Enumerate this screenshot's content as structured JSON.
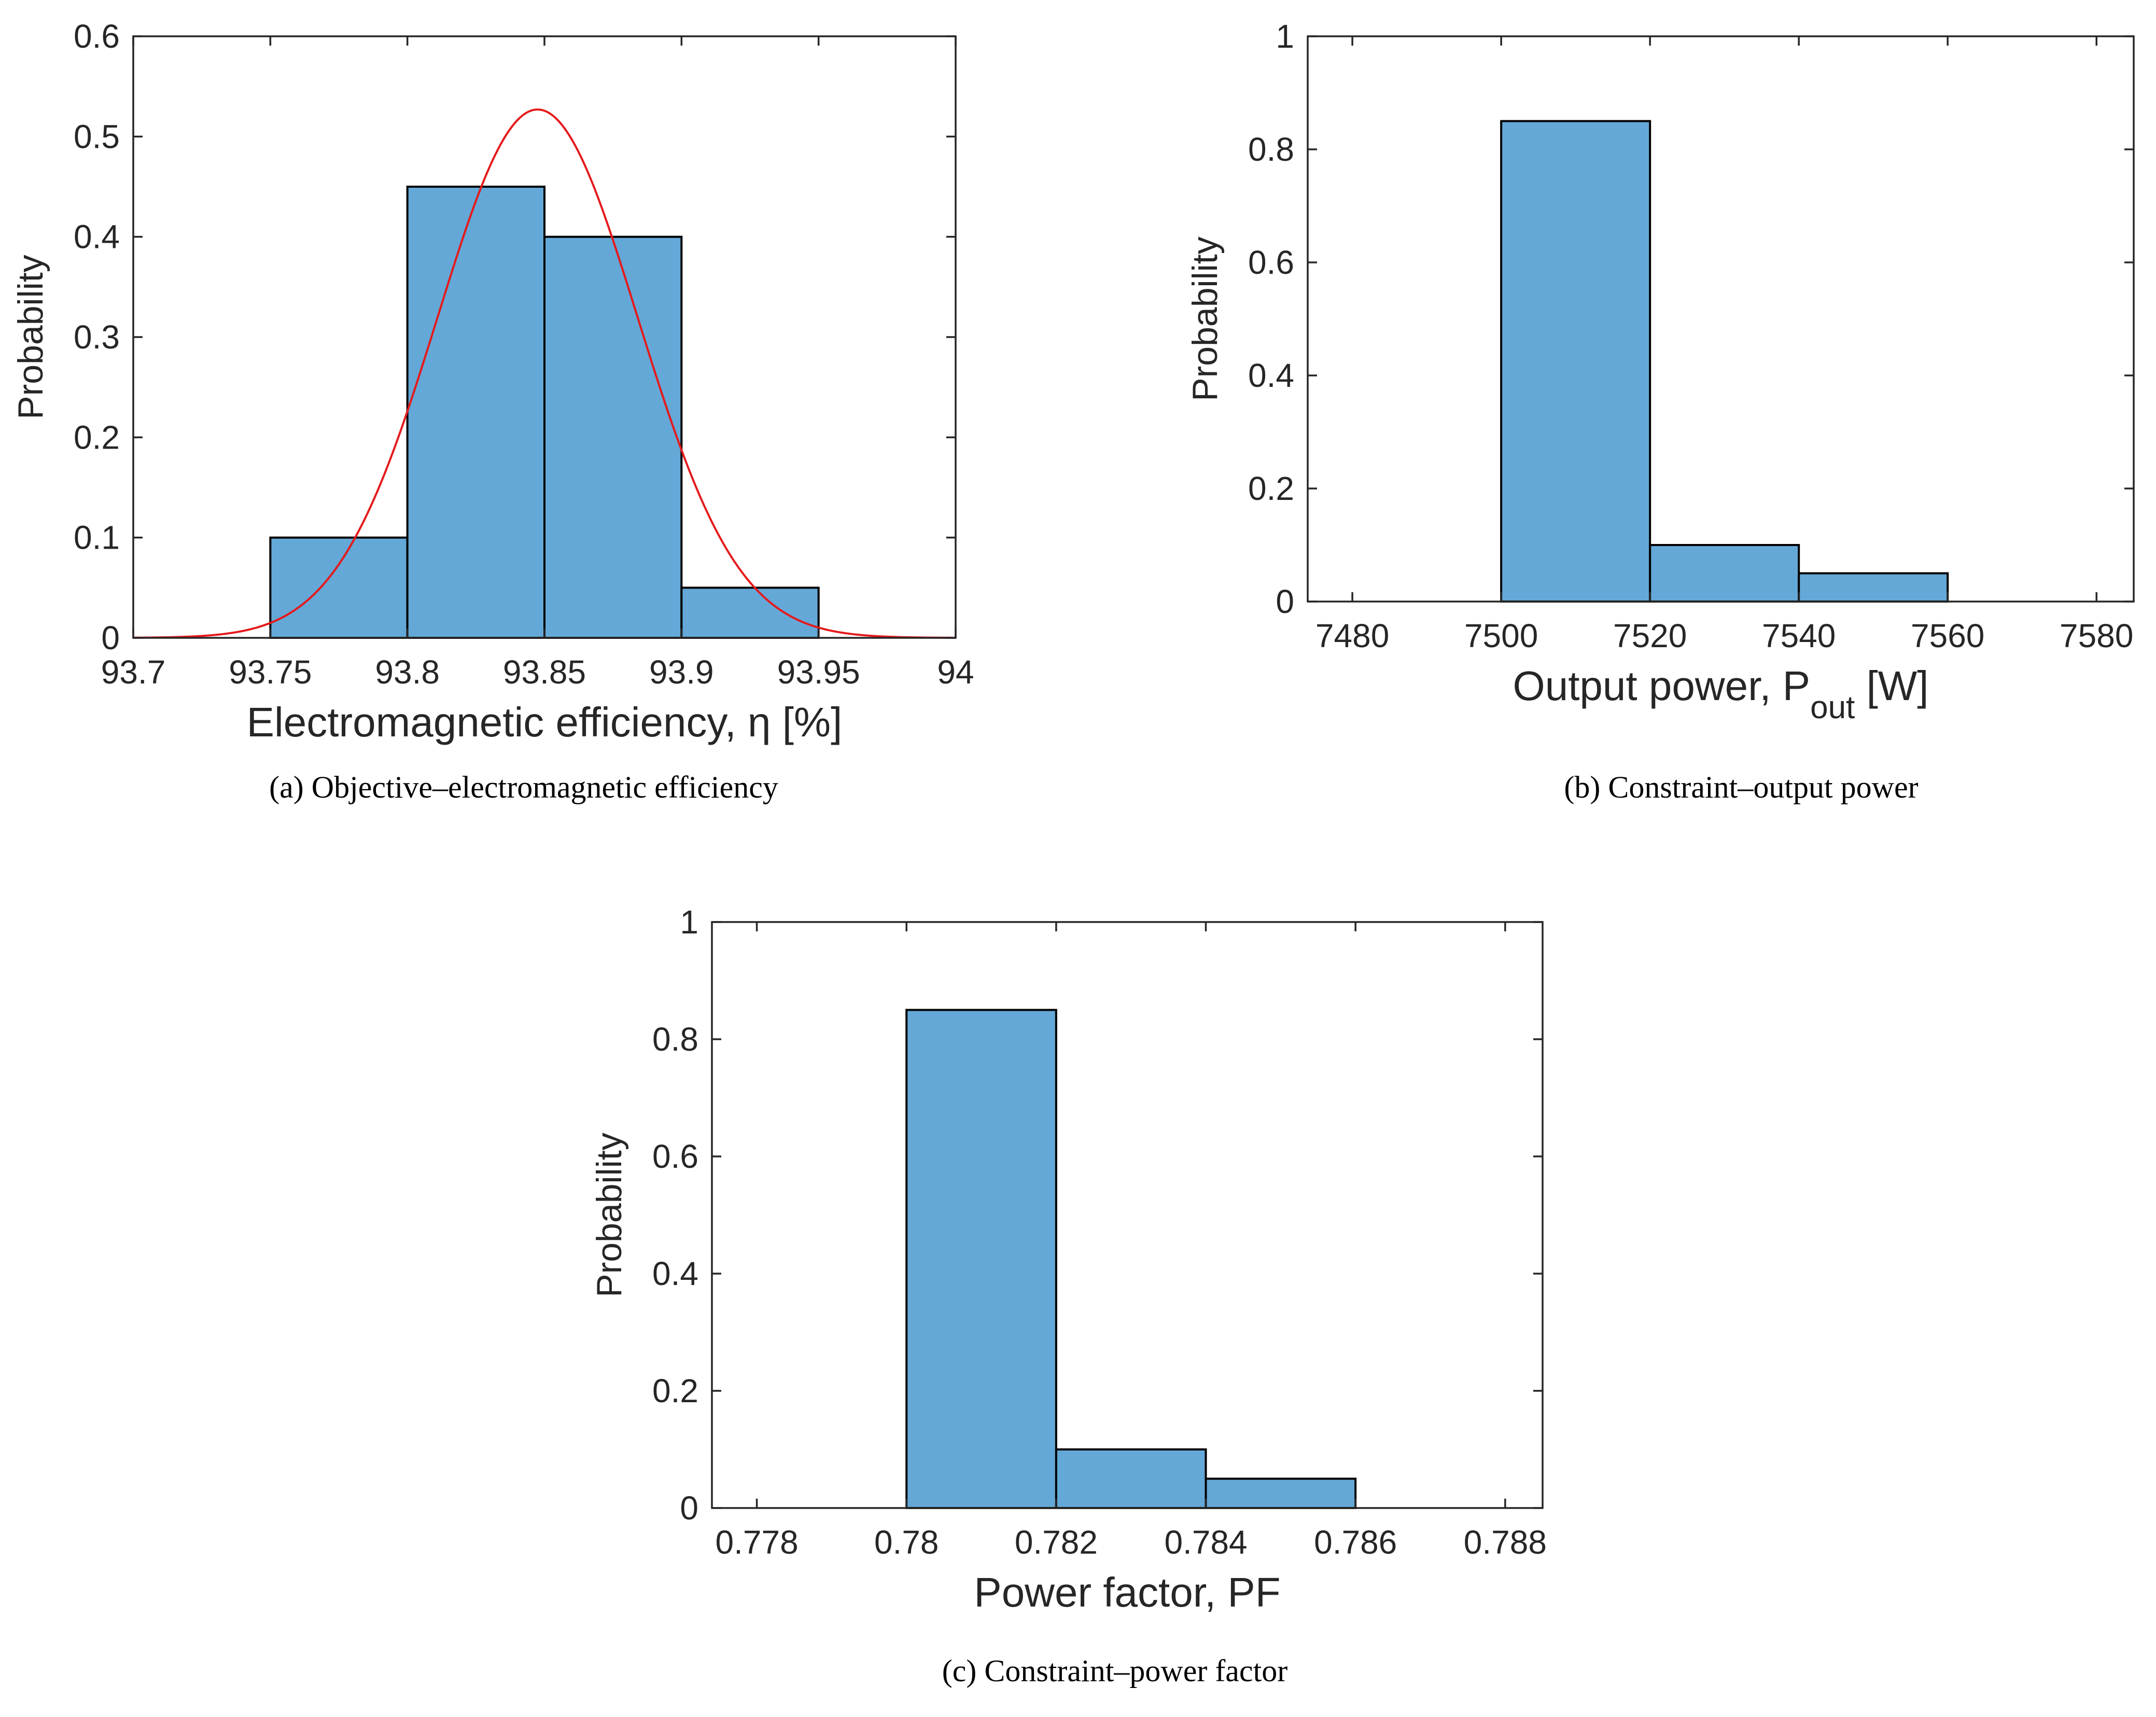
{
  "figure": {
    "panels": [
      {
        "caption_letter": "a",
        "caption_text": " Objective–electromagnetic efficiency"
      },
      {
        "caption_letter": "b",
        "caption_text": " Constraint–output power"
      },
      {
        "caption_letter": "c",
        "caption_text": " Constraint–power factor"
      }
    ]
  },
  "chart_data": [
    {
      "type": "bar",
      "title": "",
      "xlabel": "Electromagnetic efficiency, η [%]",
      "xlabel_parts": [
        "Electromagnetic efficiency, ",
        "η",
        " [%]"
      ],
      "ylabel": "Probability",
      "xlim": [
        93.7,
        94.0
      ],
      "ylim": [
        0,
        0.6
      ],
      "xticks": [
        93.7,
        93.75,
        93.8,
        93.85,
        93.9,
        93.95,
        94.0
      ],
      "xtick_labels": [
        "93.7",
        "93.75",
        "93.8",
        "93.85",
        "93.9",
        "93.95",
        "94"
      ],
      "yticks": [
        0,
        0.1,
        0.2,
        0.3,
        0.4,
        0.5,
        0.6
      ],
      "ytick_labels": [
        "0",
        "0.1",
        "0.2",
        "0.3",
        "0.4",
        "0.5",
        "0.6"
      ],
      "bin_edges": [
        93.75,
        93.8,
        93.85,
        93.9,
        93.95
      ],
      "values": [
        0.1,
        0.45,
        0.4,
        0.05
      ],
      "fit_curve": {
        "type": "normal",
        "mean": 93.8475,
        "peak": 0.527,
        "sigma": 0.0365,
        "color": "#e41a1c"
      },
      "grid": false,
      "bar_color": "#64a8d7"
    },
    {
      "type": "bar",
      "title": "",
      "xlabel": "Output power, Pout [W]",
      "xlabel_parts": [
        "Output power, P",
        "out",
        " [W]"
      ],
      "ylabel": "Probability",
      "xlim": [
        7474,
        7585
      ],
      "ylim": [
        0,
        1
      ],
      "xticks": [
        7480,
        7500,
        7520,
        7540,
        7560,
        7580
      ],
      "xtick_labels": [
        "7480",
        "7500",
        "7520",
        "7540",
        "7560",
        "7580"
      ],
      "yticks": [
        0,
        0.2,
        0.4,
        0.6,
        0.8,
        1
      ],
      "ytick_labels": [
        "0",
        "0.2",
        "0.4",
        "0.6",
        "0.8",
        "1"
      ],
      "bin_edges": [
        7500,
        7520,
        7540,
        7560
      ],
      "values": [
        0.85,
        0.1,
        0.05
      ],
      "grid": false,
      "bar_color": "#64a8d7"
    },
    {
      "type": "bar",
      "title": "",
      "xlabel": "Power factor, PF",
      "xlabel_parts": [
        "Power factor, PF"
      ],
      "ylabel": "Probability",
      "xlim": [
        0.7774,
        0.7885
      ],
      "ylim": [
        0,
        1
      ],
      "xticks": [
        0.778,
        0.78,
        0.782,
        0.784,
        0.786,
        0.788
      ],
      "xtick_labels": [
        "0.778",
        "0.78",
        "0.782",
        "0.784",
        "0.786",
        "0.788"
      ],
      "yticks": [
        0,
        0.2,
        0.4,
        0.6,
        0.8,
        1
      ],
      "ytick_labels": [
        "0",
        "0.2",
        "0.4",
        "0.6",
        "0.8",
        "1"
      ],
      "bin_edges": [
        0.78,
        0.782,
        0.784,
        0.786
      ],
      "values": [
        0.85,
        0.1,
        0.05
      ],
      "grid": false,
      "bar_color": "#64a8d7"
    }
  ]
}
